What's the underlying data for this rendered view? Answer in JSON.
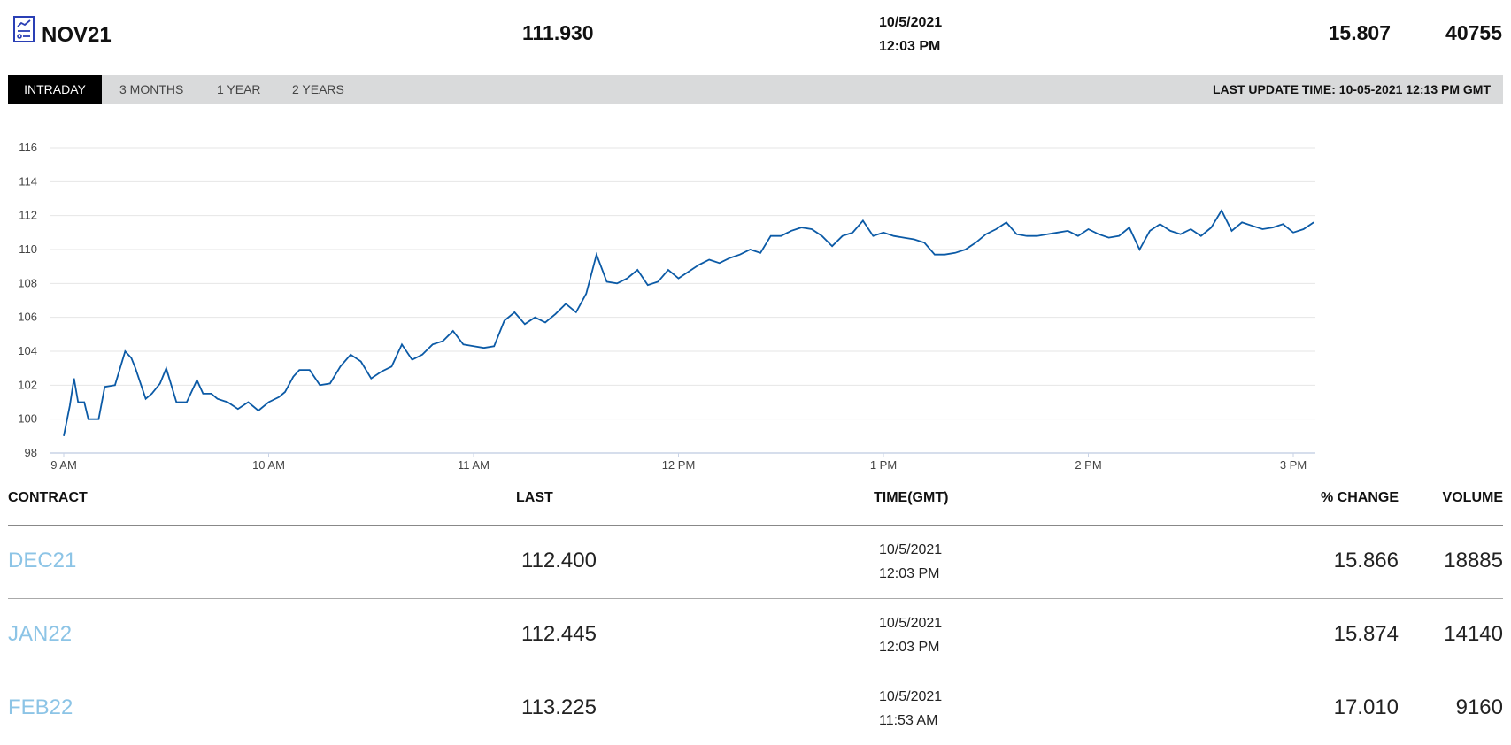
{
  "header": {
    "icon": "report-document-icon",
    "symbol": "NOV21",
    "last": "111.930",
    "date": "10/5/2021",
    "time": "12:03 PM",
    "change": "15.807",
    "volume": "40755"
  },
  "tabs": [
    {
      "label": "INTRADAY",
      "active": true
    },
    {
      "label": "3 MONTHS",
      "active": false
    },
    {
      "label": "1 YEAR",
      "active": false
    },
    {
      "label": "2 YEARS",
      "active": false
    }
  ],
  "last_update": "LAST UPDATE TIME: 10-05-2021 12:13 PM GMT",
  "colors": {
    "line": "#0b5aa6",
    "tab_active_bg": "#000000",
    "tab_bar_bg": "#d9dadb",
    "contract_link": "#8cc4e6"
  },
  "chart_data": {
    "type": "line",
    "title": "",
    "xlabel": "",
    "ylabel": "",
    "x_tick_labels": [
      "9 AM",
      "10 AM",
      "11 AM",
      "12 PM",
      "1 PM",
      "2 PM",
      "3 PM"
    ],
    "y_tick_labels": [
      "98",
      "100",
      "102",
      "104",
      "106",
      "108",
      "110",
      "112",
      "114",
      "116"
    ],
    "ylim": [
      98,
      116
    ],
    "x_unit": "hours since 9 AM",
    "xlim": [
      0,
      6.2
    ],
    "grid": true,
    "legend": "none",
    "series": [
      {
        "x": [
          0.0,
          0.03,
          0.05,
          0.07,
          0.1,
          0.12,
          0.15,
          0.17,
          0.2,
          0.25,
          0.3,
          0.33,
          0.35,
          0.4,
          0.43,
          0.47,
          0.5,
          0.55,
          0.6,
          0.65,
          0.68,
          0.72,
          0.75,
          0.8,
          0.85,
          0.9,
          0.95,
          1.0,
          1.05,
          1.08,
          1.12,
          1.15,
          1.2,
          1.25,
          1.3,
          1.35,
          1.4,
          1.45,
          1.5,
          1.55,
          1.6,
          1.65,
          1.7,
          1.75,
          1.8,
          1.85,
          1.9,
          1.95,
          2.0,
          2.05,
          2.1,
          2.15,
          2.2,
          2.25,
          2.3,
          2.35,
          2.4,
          2.45,
          2.5,
          2.55,
          2.6,
          2.65,
          2.7,
          2.75,
          2.8,
          2.85,
          2.9,
          2.95,
          3.0,
          3.05,
          3.1,
          3.15,
          3.2,
          3.25,
          3.3,
          3.35,
          3.4,
          3.45,
          3.5,
          3.55,
          3.6,
          3.65,
          3.7,
          3.75,
          3.8,
          3.85,
          3.9,
          3.95,
          4.0,
          4.05,
          4.1,
          4.15,
          4.2,
          4.25,
          4.3,
          4.35,
          4.4,
          4.45,
          4.5,
          4.55,
          4.6,
          4.65,
          4.7,
          4.75,
          4.8,
          4.85,
          4.9,
          4.95,
          5.0,
          5.05,
          5.1,
          5.15,
          5.2,
          5.25,
          5.3,
          5.35,
          5.4,
          5.45,
          5.5,
          5.55,
          5.6,
          5.65,
          5.7,
          5.75,
          5.8,
          5.85,
          5.9,
          5.95,
          6.0,
          6.05,
          6.1
        ],
        "y": [
          99.0,
          100.8,
          102.4,
          101.0,
          101.0,
          100.0,
          100.0,
          100.0,
          101.9,
          102.0,
          104.0,
          103.6,
          103.0,
          101.2,
          101.5,
          102.1,
          103.0,
          101.0,
          101.0,
          102.3,
          101.5,
          101.5,
          101.2,
          101.0,
          100.6,
          101.0,
          100.5,
          101.0,
          101.3,
          101.6,
          102.5,
          102.9,
          102.9,
          102.0,
          102.1,
          103.1,
          103.8,
          103.4,
          102.4,
          102.8,
          103.1,
          104.4,
          103.5,
          103.8,
          104.4,
          104.6,
          105.2,
          104.4,
          104.3,
          104.2,
          104.3,
          105.8,
          106.3,
          105.6,
          106.0,
          105.7,
          106.2,
          106.8,
          106.3,
          107.4,
          109.7,
          108.1,
          108.0,
          108.3,
          108.8,
          107.9,
          108.1,
          108.8,
          108.3,
          108.7,
          109.1,
          109.4,
          109.2,
          109.5,
          109.7,
          110.0,
          109.8,
          110.8,
          110.8,
          111.1,
          111.3,
          111.2,
          110.8,
          110.2,
          110.8,
          111.0,
          111.7,
          110.8,
          111.0,
          110.8,
          110.7,
          110.6,
          110.4,
          109.7,
          109.7,
          109.8,
          110.0,
          110.4,
          110.9,
          111.2,
          111.6,
          110.9,
          110.8,
          110.8,
          110.9,
          111.0,
          111.1,
          110.8,
          111.2,
          110.9,
          110.7,
          110.8,
          111.3,
          110.0,
          111.1,
          111.5,
          111.1,
          110.9,
          111.2,
          110.8,
          111.3,
          112.3,
          111.1,
          111.6,
          111.4,
          111.2,
          111.3,
          111.5,
          111.0,
          111.2,
          111.6
        ]
      }
    ]
  },
  "table": {
    "headers": [
      "CONTRACT",
      "LAST",
      "TIME(GMT)",
      "% CHANGE",
      "VOLUME"
    ],
    "rows": [
      {
        "contract": "DEC21",
        "last": "112.400",
        "date": "10/5/2021",
        "time": "12:03 PM",
        "change": "15.866",
        "volume": "18885"
      },
      {
        "contract": "JAN22",
        "last": "112.445",
        "date": "10/5/2021",
        "time": "12:03 PM",
        "change": "15.874",
        "volume": "14140"
      },
      {
        "contract": "FEB22",
        "last": "113.225",
        "date": "10/5/2021",
        "time": "11:53 AM",
        "change": "17.010",
        "volume": "9160"
      }
    ]
  }
}
